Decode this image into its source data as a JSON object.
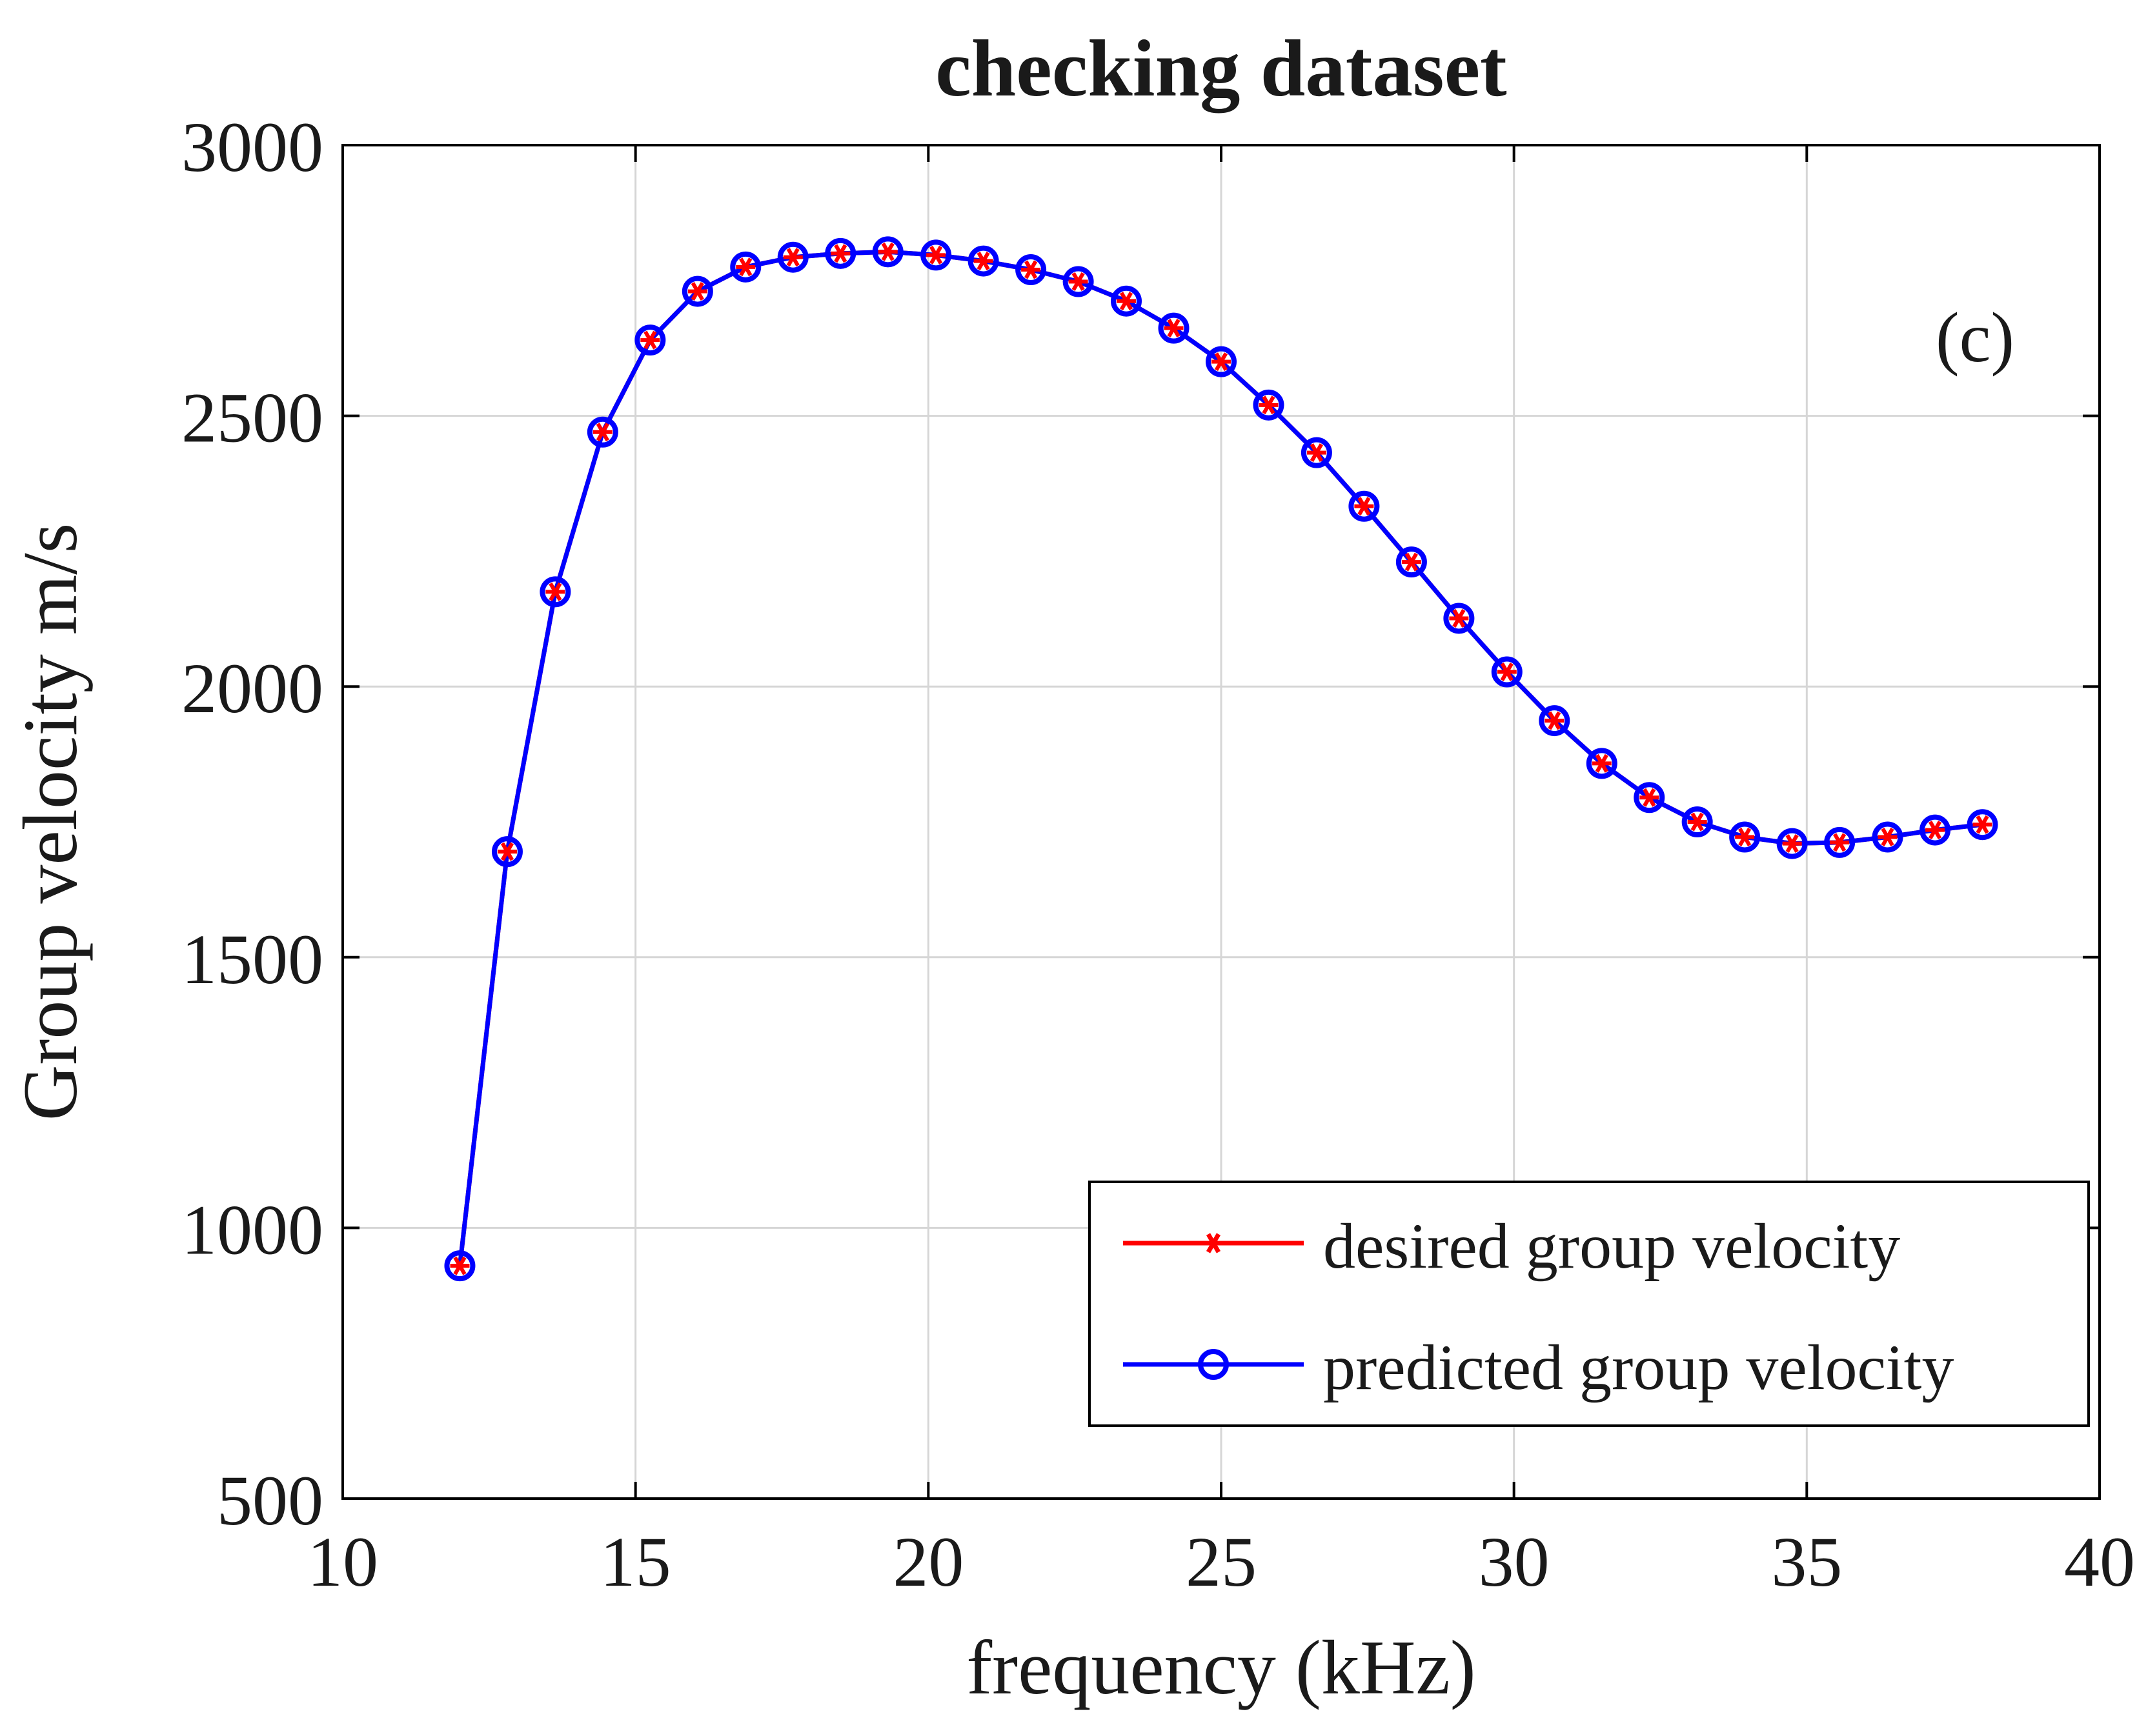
{
  "figure": {
    "title": "checking dataset",
    "xlabel": "frequency (kHz)",
    "ylabel": "Group velocity m/s",
    "annotation": "(c)"
  },
  "legend": {
    "position": "south-east",
    "items": [
      {
        "label": "desired group velocity",
        "color": "#FF0000",
        "marker": "asterisk"
      },
      {
        "label": "predicted group velocity",
        "color": "#0000FF",
        "marker": "circle"
      }
    ]
  },
  "colors": {
    "desired": "#FF0000",
    "predicted": "#0000FF",
    "grid": "#d6d6d6",
    "axis_box": "#000000"
  },
  "chart_data": {
    "type": "line",
    "title": "checking dataset",
    "xlabel": "frequency (kHz)",
    "ylabel": "Group velocity m/s",
    "xlim": [
      10,
      40
    ],
    "ylim": [
      500,
      3000
    ],
    "x_ticks": [
      10,
      15,
      20,
      25,
      30,
      35,
      40
    ],
    "y_ticks": [
      500,
      1000,
      1500,
      2000,
      2500,
      3000
    ],
    "grid": true,
    "legend_position": "south east",
    "x": [
      12.0,
      12.81,
      13.63,
      14.44,
      15.25,
      16.06,
      16.88,
      17.69,
      18.5,
      19.31,
      20.13,
      20.94,
      21.75,
      22.56,
      23.38,
      24.19,
      25.0,
      25.81,
      26.63,
      27.44,
      28.25,
      29.06,
      29.88,
      30.69,
      31.5,
      32.31,
      33.13,
      33.94,
      34.75,
      35.56,
      36.38,
      37.19,
      38.0
    ],
    "series": [
      {
        "name": "desired group velocity",
        "color": "#FF0000",
        "marker": "asterisk",
        "values": [
          930,
          1695,
          2175,
          2470,
          2640,
          2730,
          2775,
          2793,
          2800,
          2803,
          2797,
          2786,
          2770,
          2748,
          2712,
          2662,
          2600,
          2520,
          2432,
          2333,
          2230,
          2126,
          2027,
          1937,
          1858,
          1795,
          1750,
          1722,
          1710,
          1712,
          1722,
          1735,
          1745
        ]
      },
      {
        "name": "predicted group velocity",
        "color": "#0000FF",
        "marker": "circle",
        "values": [
          930,
          1695,
          2175,
          2470,
          2640,
          2730,
          2775,
          2793,
          2800,
          2803,
          2797,
          2786,
          2770,
          2748,
          2712,
          2662,
          2600,
          2520,
          2432,
          2333,
          2230,
          2126,
          2027,
          1937,
          1858,
          1795,
          1750,
          1722,
          1710,
          1712,
          1722,
          1735,
          1745
        ]
      }
    ]
  }
}
